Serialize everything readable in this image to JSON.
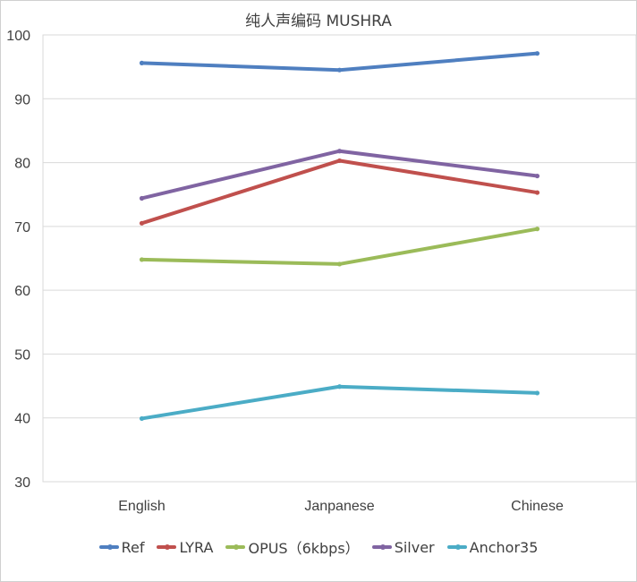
{
  "chart_data": {
    "type": "line",
    "title": "纯人声编码 MUSHRA",
    "xlabel": "",
    "ylabel": "",
    "categories": [
      "English",
      "Janpanese",
      "Chinese"
    ],
    "ylim": [
      30,
      100
    ],
    "yticks": [
      30,
      40,
      50,
      60,
      70,
      80,
      90,
      100
    ],
    "grid": true,
    "legend_position": "bottom",
    "series": [
      {
        "name": "Ref",
        "color": "#4f7fc0",
        "values": [
          95.6,
          94.5,
          97.1
        ]
      },
      {
        "name": "LYRA",
        "color": "#c0504d",
        "values": [
          70.5,
          80.3,
          75.3
        ]
      },
      {
        "name": "OPUS（6kbps）",
        "color": "#9bbb59",
        "values": [
          64.8,
          64.1,
          69.6
        ]
      },
      {
        "name": "Silver",
        "color": "#8064a2",
        "values": [
          74.4,
          81.8,
          77.9
        ]
      },
      {
        "name": "Anchor35",
        "color": "#4bacc6",
        "values": [
          39.9,
          44.9,
          43.9
        ]
      }
    ]
  }
}
